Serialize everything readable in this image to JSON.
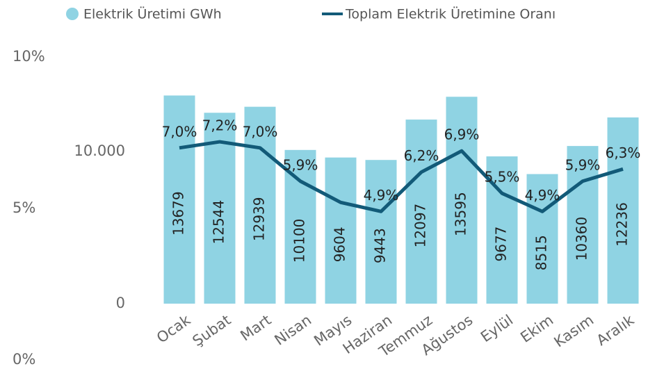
{
  "chart_data": {
    "type": "bar-line",
    "categories": [
      "Ocak",
      "Şubat",
      "Mart",
      "Nisan",
      "Mayıs",
      "Haziran",
      "Temmuz",
      "Ağustos",
      "Eylül",
      "Ekim",
      "Kasım",
      "Aralık"
    ],
    "series": [
      {
        "name": "Elektrik Üretimi GWh",
        "color": "#8fd3e3",
        "type": "bar",
        "values": [
          13679,
          12544,
          12939,
          10100,
          9604,
          9443,
          12097,
          13595,
          9677,
          8515,
          10360,
          12236
        ]
      },
      {
        "name": "Toplam Elektrik Üretimine Oranı",
        "color": "#125a78",
        "type": "line",
        "axis": "y2",
        "values": [
          7.0,
          7.2,
          7.0,
          5.9,
          5.2,
          4.9,
          6.2,
          6.9,
          5.5,
          4.9,
          5.9,
          6.3
        ],
        "value_labels": [
          "7,0%",
          "7,2%",
          "7,0%",
          "5,9%",
          null,
          "4,9%",
          "6,2%",
          "6,9%",
          "5,5%",
          "4,9%",
          "5,9%",
          "6,3%"
        ]
      }
    ],
    "ylim": [
      0,
      16000
    ],
    "yticks": [
      0,
      {
        "value": 10000,
        "label": "10.000"
      }
    ],
    "y2lim": [
      0,
      10
    ],
    "y2ticks": [
      {
        "value": 0,
        "label": "0%"
      },
      {
        "value": 5,
        "label": "5%"
      },
      {
        "value": 10,
        "label": "10%"
      }
    ],
    "legend": "top"
  }
}
